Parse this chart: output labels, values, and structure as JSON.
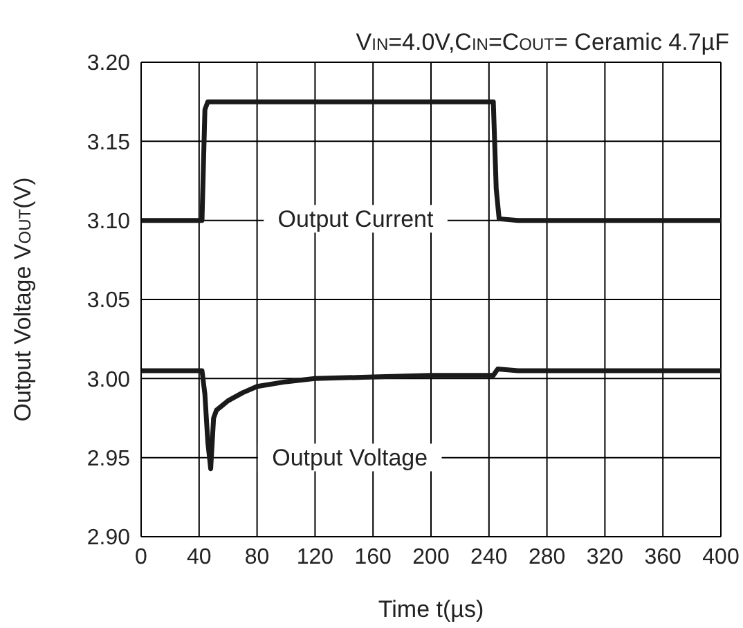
{
  "chart_data": {
    "type": "line",
    "title": "V$_{IN}$=4.0V,C$_{IN}$=C$_{OUT}$= Ceramic 4.7µF",
    "xlabel": "Time t(µs)",
    "ylabel": "Output Voltage V$_{OUT}$(V)",
    "xlim": [
      0,
      400
    ],
    "xticks": [
      0,
      40,
      80,
      120,
      160,
      200,
      240,
      280,
      320,
      360,
      400
    ],
    "ylim": [
      2.9,
      3.2
    ],
    "yticks": [
      {
        "value": 2.9,
        "label": "2.90"
      },
      {
        "value": 2.95,
        "label": "2.95"
      },
      {
        "value": 3.0,
        "label": "3.00"
      },
      {
        "value": 3.05,
        "label": "3.05"
      },
      {
        "value": 3.1,
        "label": "3.10"
      },
      {
        "value": 3.15,
        "label": "3.15"
      },
      {
        "value": 3.2,
        "label": "3.20"
      }
    ],
    "grid": true,
    "legend": false,
    "marker": "none",
    "line_style": "solid",
    "series": [
      {
        "color": "#1a1a1a",
        "x": [
          0,
          42,
          44,
          46,
          100,
          200,
          243,
          245,
          247,
          260,
          400
        ],
        "values": [
          3.1,
          3.1,
          3.17,
          3.175,
          3.175,
          3.175,
          3.175,
          3.12,
          3.101,
          3.1,
          3.1
        ]
      },
      {
        "color": "#1a1a1a",
        "x": [
          0,
          42,
          44,
          46,
          48,
          50,
          52,
          56,
          60,
          70,
          80,
          100,
          120,
          160,
          200,
          240,
          243,
          246,
          260,
          400
        ],
        "values": [
          3.005,
          3.005,
          2.99,
          2.96,
          2.943,
          2.975,
          2.98,
          2.983,
          2.986,
          2.991,
          2.995,
          2.998,
          3.0,
          3.001,
          3.002,
          3.002,
          3.002,
          3.006,
          3.005,
          3.005
        ]
      }
    ],
    "annotations": [
      "Output Current",
      "Output Voltage"
    ]
  }
}
